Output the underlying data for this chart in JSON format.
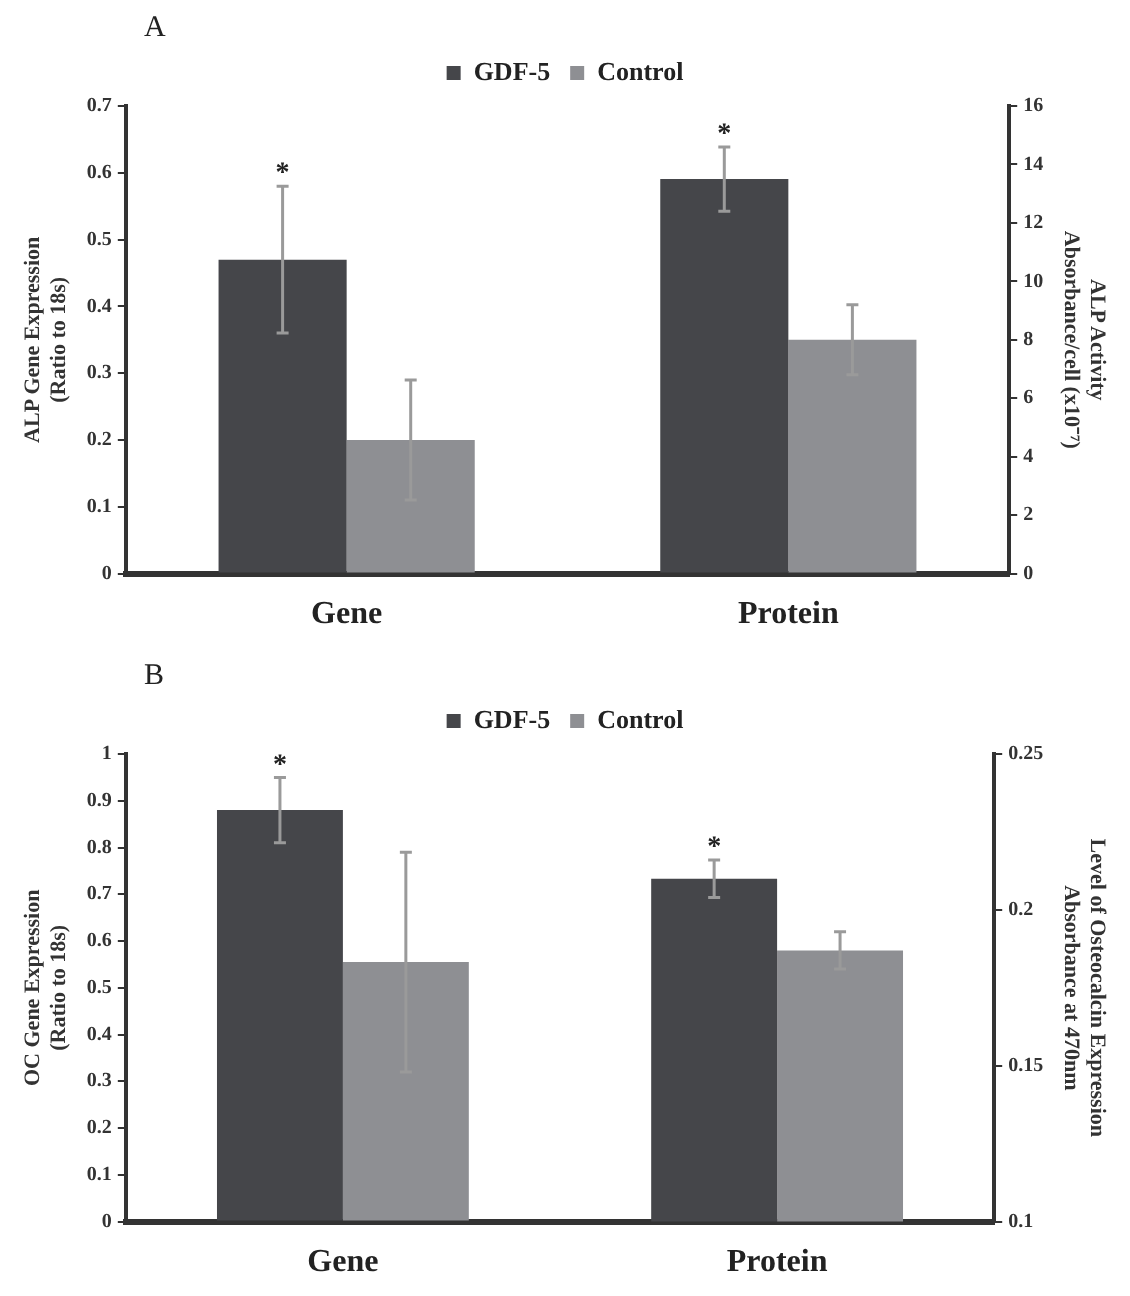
{
  "chart_data": [
    {
      "type": "bar",
      "title": "A",
      "categories": [
        "Gene",
        "Protein"
      ],
      "ylabel": "ALP Gene Expression\n(Ratio to 18s)",
      "y2label": "ALP Activity\nAbsorbance/cell (x10⁻⁷)",
      "series": [
        {
          "name": "GDF-5",
          "color": "#45464a",
          "values": [
            0.47,
            null
          ],
          "errors": [
            0.11,
            null
          ]
        },
        {
          "name": "Control",
          "color": "#8e8f93",
          "values": [
            0.2,
            null
          ],
          "errors": [
            0.09,
            null
          ]
        },
        {
          "color": "#45464a",
          "axis": "y2",
          "values": [
            null,
            13.5
          ],
          "errors": [
            null,
            1.1
          ]
        },
        {
          "color": "#8e8f93",
          "axis": "y2",
          "values": [
            null,
            8.0
          ],
          "errors": [
            null,
            1.2
          ]
        }
      ],
      "ylim": [
        0,
        0.7
      ],
      "yticks": [
        0,
        0.1,
        0.2,
        0.3,
        0.4,
        0.5,
        0.6,
        0.7
      ],
      "y2lim": [
        0,
        16
      ],
      "y2ticks": [
        0,
        2,
        4,
        6,
        8,
        10,
        12,
        14,
        16
      ],
      "annotations": [
        "*",
        "*"
      ],
      "legend": "top",
      "grid": false
    },
    {
      "type": "bar",
      "title": "B",
      "categories": [
        "Gene",
        "Protein"
      ],
      "ylabel": "OC Gene Expression\n(Ratio to 18s)",
      "y2label": "Level of Osteocalcin Expression\nAbsorbance at 470nm",
      "series": [
        {
          "name": "GDF-5",
          "color": "#45464a",
          "values": [
            0.88,
            null
          ],
          "errors": [
            0.07,
            null
          ]
        },
        {
          "name": "Control",
          "color": "#8e8f93",
          "values": [
            0.555,
            null
          ],
          "errors": [
            0.235,
            null
          ]
        },
        {
          "color": "#45464a",
          "axis": "y2",
          "values": [
            null,
            0.21
          ],
          "errors": [
            null,
            0.006
          ]
        },
        {
          "color": "#8e8f93",
          "axis": "y2",
          "values": [
            null,
            0.187
          ],
          "errors": [
            null,
            0.006
          ]
        }
      ],
      "ylim": [
        0,
        1
      ],
      "yticks": [
        0,
        0.1,
        0.2,
        0.3,
        0.4,
        0.5,
        0.6,
        0.7,
        0.8,
        0.9,
        1
      ],
      "y2lim": [
        0.1,
        0.25
      ],
      "y2ticks": [
        0.1,
        0.15,
        0.2,
        0.25
      ],
      "annotations": [
        "*",
        "*"
      ],
      "legend": "top",
      "grid": false
    }
  ]
}
